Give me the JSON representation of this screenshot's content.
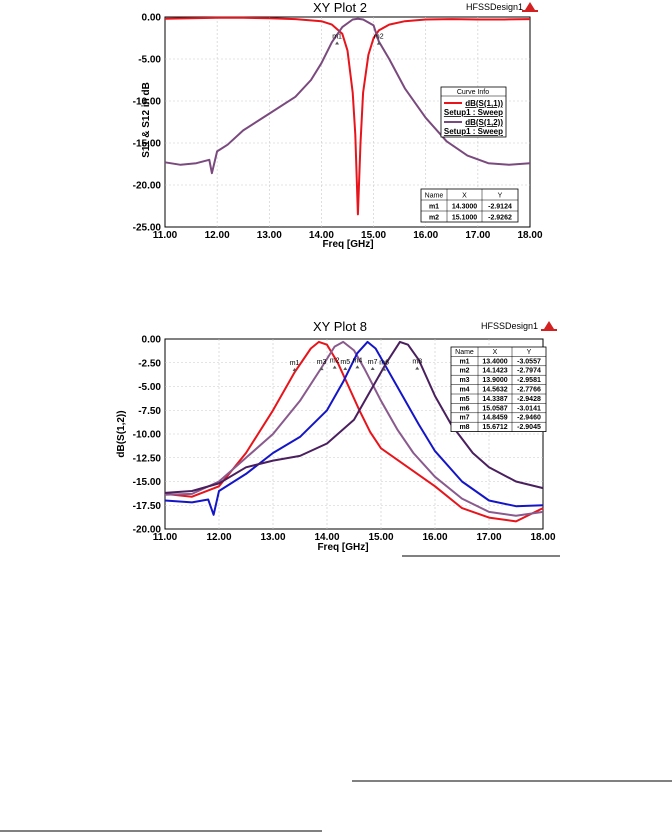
{
  "chart_data": [
    {
      "type": "line",
      "title": "XY Plot 2",
      "brand": "HFSSDesign1",
      "xlabel": "Freq [GHz]",
      "ylabel": "S11 & S12 in dB",
      "xlim": [
        11,
        18
      ],
      "ylim": [
        -25,
        0
      ],
      "x_ticks": [
        "11.00",
        "12.00",
        "13.00",
        "14.00",
        "15.00",
        "16.00",
        "17.00",
        "18.00"
      ],
      "y_ticks": [
        "0.00",
        "-5.00",
        "-10.00",
        "-15.00",
        "-20.00",
        "-25.00"
      ],
      "grid": true,
      "legend_title": "Curve Info",
      "series": [
        {
          "name": "dB(S(1,1))",
          "setup": "Setup1 : Sweep",
          "color": "#e8141b",
          "points": [
            [
              11.0,
              -0.2
            ],
            [
              11.5,
              -0.15
            ],
            [
              12.0,
              -0.1
            ],
            [
              12.5,
              -0.1
            ],
            [
              13.0,
              -0.15
            ],
            [
              13.5,
              -0.25
            ],
            [
              14.0,
              -0.5
            ],
            [
              14.2,
              -0.9
            ],
            [
              14.4,
              -2.0
            ],
            [
              14.5,
              -4.0
            ],
            [
              14.6,
              -9.0
            ],
            [
              14.65,
              -14.0
            ],
            [
              14.7,
              -23.5
            ],
            [
              14.75,
              -15.0
            ],
            [
              14.8,
              -9.0
            ],
            [
              14.9,
              -4.5
            ],
            [
              15.0,
              -2.5
            ],
            [
              15.1,
              -1.6
            ],
            [
              15.3,
              -0.9
            ],
            [
              15.6,
              -0.5
            ],
            [
              16.0,
              -0.3
            ],
            [
              16.5,
              -0.25
            ],
            [
              17.0,
              -0.3
            ],
            [
              17.5,
              -0.3
            ],
            [
              18.0,
              -0.25
            ]
          ]
        },
        {
          "name": "dB(S(1,2))",
          "setup": "Setup1 : Sweep",
          "color": "#7a4a7e",
          "points": [
            [
              11.0,
              -17.3
            ],
            [
              11.3,
              -17.6
            ],
            [
              11.6,
              -17.4
            ],
            [
              11.85,
              -17.0
            ],
            [
              11.9,
              -18.6
            ],
            [
              12.0,
              -16.0
            ],
            [
              12.2,
              -15.2
            ],
            [
              12.5,
              -13.5
            ],
            [
              13.0,
              -11.5
            ],
            [
              13.5,
              -9.5
            ],
            [
              13.8,
              -7.5
            ],
            [
              14.0,
              -5.5
            ],
            [
              14.2,
              -3.0
            ],
            [
              14.4,
              -1.2
            ],
            [
              14.6,
              -0.3
            ],
            [
              14.7,
              -0.2
            ],
            [
              14.8,
              -0.3
            ],
            [
              15.0,
              -1.0
            ],
            [
              15.1,
              -2.9
            ],
            [
              15.3,
              -5.0
            ],
            [
              15.6,
              -8.5
            ],
            [
              16.0,
              -12.0
            ],
            [
              16.4,
              -14.8
            ],
            [
              16.8,
              -16.5
            ],
            [
              17.2,
              -17.4
            ],
            [
              17.6,
              -17.6
            ],
            [
              18.0,
              -17.4
            ]
          ]
        }
      ],
      "markers": [
        {
          "name": "m1",
          "x": 14.3,
          "y": -2.9124
        },
        {
          "name": "m2",
          "x": 15.1,
          "y": -2.9262
        }
      ],
      "marker_table": {
        "headers": [
          "Name",
          "X",
          "Y"
        ],
        "rows": [
          [
            "m1",
            "14.3000",
            "-2.9124"
          ],
          [
            "m2",
            "15.1000",
            "-2.9262"
          ]
        ]
      }
    },
    {
      "type": "line",
      "title": "XY Plot 8",
      "brand": "HFSSDesign1",
      "xlabel": "Freq [GHz]",
      "ylabel": "dB(S(1,2))",
      "xlim": [
        11,
        18
      ],
      "ylim": [
        -20,
        0
      ],
      "x_ticks": [
        "11.00",
        "12.00",
        "13.00",
        "14.00",
        "15.00",
        "16.00",
        "17.00",
        "18.00"
      ],
      "y_ticks": [
        "0.00",
        "-2.50",
        "-5.00",
        "-7.50",
        "-10.00",
        "-12.50",
        "-15.00",
        "-17.50",
        "-20.00"
      ],
      "grid": true,
      "series": [
        {
          "color": "#e8141b",
          "points": [
            [
              11.0,
              -16.3
            ],
            [
              11.5,
              -16.6
            ],
            [
              12.0,
              -15.5
            ],
            [
              12.5,
              -12.0
            ],
            [
              13.0,
              -7.5
            ],
            [
              13.4,
              -3.5
            ],
            [
              13.7,
              -1.0
            ],
            [
              13.85,
              -0.3
            ],
            [
              14.0,
              -0.6
            ],
            [
              14.2,
              -2.5
            ],
            [
              14.4,
              -5.0
            ],
            [
              14.6,
              -7.5
            ],
            [
              14.8,
              -9.8
            ],
            [
              15.0,
              -11.5
            ],
            [
              15.5,
              -13.5
            ],
            [
              16.0,
              -15.5
            ],
            [
              16.5,
              -17.8
            ],
            [
              17.0,
              -18.8
            ],
            [
              17.5,
              -19.2
            ],
            [
              18.0,
              -17.8
            ]
          ]
        },
        {
          "color": "#8a5a8e",
          "points": [
            [
              11.0,
              -16.4
            ],
            [
              11.5,
              -16.3
            ],
            [
              12.0,
              -15.0
            ],
            [
              12.5,
              -12.5
            ],
            [
              13.0,
              -10.0
            ],
            [
              13.5,
              -6.5
            ],
            [
              13.9,
              -3.0
            ],
            [
              14.14,
              -0.8
            ],
            [
              14.3,
              -0.3
            ],
            [
              14.5,
              -1.2
            ],
            [
              14.7,
              -3.2
            ],
            [
              15.0,
              -6.5
            ],
            [
              15.3,
              -9.5
            ],
            [
              15.6,
              -12.0
            ],
            [
              16.0,
              -14.5
            ],
            [
              16.5,
              -16.8
            ],
            [
              17.0,
              -18.2
            ],
            [
              17.5,
              -18.6
            ],
            [
              18.0,
              -18.2
            ]
          ]
        },
        {
          "color": "#1515c8",
          "points": [
            [
              11.0,
              -17.0
            ],
            [
              11.5,
              -17.2
            ],
            [
              11.8,
              -16.9
            ],
            [
              11.9,
              -18.5
            ],
            [
              12.0,
              -16.0
            ],
            [
              12.5,
              -14.2
            ],
            [
              13.0,
              -12.0
            ],
            [
              13.5,
              -10.3
            ],
            [
              14.0,
              -7.5
            ],
            [
              14.3,
              -4.5
            ],
            [
              14.56,
              -1.5
            ],
            [
              14.75,
              -0.3
            ],
            [
              14.9,
              -1.0
            ],
            [
              15.1,
              -3.0
            ],
            [
              15.4,
              -6.0
            ],
            [
              15.7,
              -9.0
            ],
            [
              16.0,
              -11.8
            ],
            [
              16.5,
              -15.0
            ],
            [
              17.0,
              -17.0
            ],
            [
              17.5,
              -17.6
            ],
            [
              18.0,
              -17.5
            ]
          ]
        },
        {
          "color": "#4a1f5e",
          "points": [
            [
              11.0,
              -16.2
            ],
            [
              11.5,
              -16.0
            ],
            [
              12.0,
              -15.2
            ],
            [
              12.5,
              -13.5
            ],
            [
              13.0,
              -12.8
            ],
            [
              13.5,
              -12.3
            ],
            [
              14.0,
              -11.0
            ],
            [
              14.5,
              -8.5
            ],
            [
              14.8,
              -5.5
            ],
            [
              15.1,
              -2.5
            ],
            [
              15.35,
              -0.3
            ],
            [
              15.5,
              -0.6
            ],
            [
              15.7,
              -2.2
            ],
            [
              16.0,
              -6.0
            ],
            [
              16.3,
              -9.0
            ],
            [
              16.7,
              -12.0
            ],
            [
              17.0,
              -13.5
            ],
            [
              17.5,
              -15.0
            ],
            [
              18.0,
              -15.7
            ]
          ]
        }
      ],
      "markers": [
        {
          "name": "m1",
          "x": 13.4,
          "y": -3.0557
        },
        {
          "name": "m2",
          "x": 14.1423,
          "y": -2.7974
        },
        {
          "name": "m3",
          "x": 13.9,
          "y": -2.9581
        },
        {
          "name": "m4",
          "x": 14.5632,
          "y": -2.7766
        },
        {
          "name": "m5",
          "x": 14.3387,
          "y": -2.9428
        },
        {
          "name": "m6",
          "x": 15.0587,
          "y": -3.0141
        },
        {
          "name": "m7",
          "x": 14.8459,
          "y": -2.946
        },
        {
          "name": "m8",
          "x": 15.6712,
          "y": -2.9045
        }
      ],
      "marker_table": {
        "headers": [
          "Name",
          "X",
          "Y"
        ],
        "rows": [
          [
            "m1",
            "13.4000",
            "-3.0557"
          ],
          [
            "m2",
            "14.1423",
            "-2.7974"
          ],
          [
            "m3",
            "13.9000",
            "-2.9581"
          ],
          [
            "m4",
            "14.5632",
            "-2.7766"
          ],
          [
            "m5",
            "14.3387",
            "-2.9428"
          ],
          [
            "m6",
            "15.0587",
            "-3.0141"
          ],
          [
            "m7",
            "14.8459",
            "-2.9460"
          ],
          [
            "m8",
            "15.6712",
            "-2.9045"
          ]
        ]
      }
    }
  ]
}
